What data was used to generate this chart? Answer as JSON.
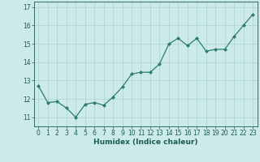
{
  "x": [
    0,
    1,
    2,
    3,
    4,
    5,
    6,
    7,
    8,
    9,
    10,
    11,
    12,
    13,
    14,
    15,
    16,
    17,
    18,
    19,
    20,
    21,
    22,
    23
  ],
  "y": [
    12.7,
    11.8,
    11.85,
    11.5,
    11.0,
    11.7,
    11.8,
    11.65,
    12.1,
    12.65,
    13.35,
    13.45,
    13.45,
    13.9,
    15.0,
    15.3,
    14.9,
    15.3,
    14.6,
    14.7,
    14.7,
    15.4,
    16.0,
    16.6
  ],
  "line_color": "#2e7d6e",
  "marker": "D",
  "marker_size": 2.0,
  "bg_color": "#cceae7",
  "grid_color": "#aad4d0",
  "axis_label_color": "#1a5c52",
  "tick_color": "#1a5c52",
  "xlabel": "Humidex (Indice chaleur)",
  "ylim": [
    10.5,
    17.3
  ],
  "xlim": [
    -0.5,
    23.5
  ],
  "yticks": [
    11,
    12,
    13,
    14,
    15,
    16,
    17
  ],
  "xticks": [
    0,
    1,
    2,
    3,
    4,
    5,
    6,
    7,
    8,
    9,
    10,
    11,
    12,
    13,
    14,
    15,
    16,
    17,
    18,
    19,
    20,
    21,
    22,
    23
  ],
  "label_fontsize": 6.5,
  "tick_fontsize": 5.5,
  "linewidth": 0.9
}
